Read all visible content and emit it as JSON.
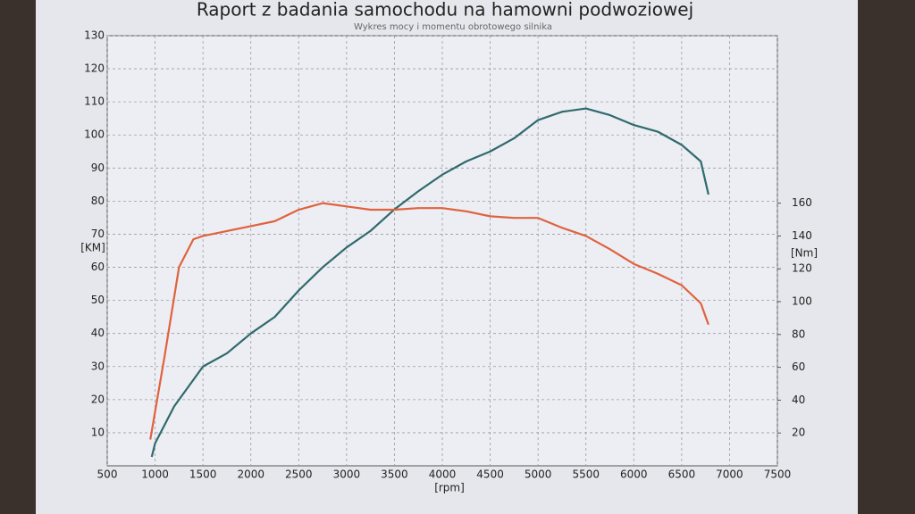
{
  "chart_data": {
    "type": "line",
    "title": "Raport z badania samochodu na hamowni podwoziowej",
    "subtitle": "Wykres mocy i momentu obrotowego silnika",
    "xlabel": "[rpm]",
    "ylabel": "[KM]",
    "y2label": "[Nm]",
    "xlim": [
      500,
      7500
    ],
    "xticks": [
      500,
      1000,
      1500,
      2000,
      2500,
      3000,
      3500,
      4000,
      4500,
      5000,
      5500,
      6000,
      6500,
      7000,
      7500
    ],
    "ylim": [
      0,
      130
    ],
    "yticks": [
      10,
      20,
      30,
      40,
      50,
      60,
      70,
      80,
      90,
      100,
      110,
      120,
      130
    ],
    "y2lim": [
      0,
      262
    ],
    "y2ticks": [
      20,
      40,
      60,
      80,
      100,
      120,
      140,
      160
    ],
    "grid": true,
    "series": [
      {
        "color": "#2f6a6c",
        "x": [
          965,
          1000,
          1200,
          1400,
          1500,
          1750,
          2000,
          2250,
          2500,
          2750,
          3000,
          3250,
          3500,
          3750,
          4000,
          4250,
          4500,
          4750,
          5000,
          5250,
          5500,
          5750,
          6000,
          6250,
          6500,
          6700,
          6780
        ],
        "values": [
          2.7,
          6.8,
          18,
          26,
          30,
          34,
          40,
          45,
          53,
          60,
          66,
          71,
          77.5,
          83,
          88,
          92,
          95,
          99,
          104.5,
          107,
          108,
          106,
          103,
          101,
          97,
          92,
          82
        ]
      },
      {
        "color": "#e0623e",
        "axis": "y2",
        "x": [
          950,
          1100,
          1250,
          1400,
          1500,
          1750,
          2000,
          2250,
          2500,
          2750,
          3000,
          3250,
          3500,
          3750,
          4000,
          4250,
          4500,
          4750,
          5000,
          5250,
          5500,
          5750,
          6000,
          6250,
          6500,
          6700,
          6780
        ],
        "values": [
          16,
          67,
          121,
          138,
          140,
          143,
          146,
          149,
          156,
          160,
          158,
          156,
          156,
          157,
          157,
          155,
          152,
          151,
          151,
          145,
          140,
          132,
          123,
          117,
          110,
          99,
          86
        ]
      }
    ]
  }
}
